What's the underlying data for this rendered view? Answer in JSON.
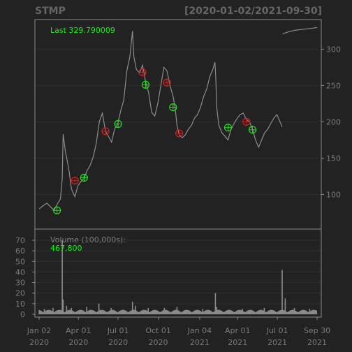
{
  "title": "STMP",
  "date_range": "[2020-01-02/2021-09-30]",
  "last_label": "Last 329.790009",
  "volume_label": "Volume (100,000s):",
  "volume_last": "467,800",
  "colors": {
    "background": "#222222",
    "frame": "#8a8a8a",
    "grid": "#2f2f2f",
    "price_line": "#8c8c8c",
    "green": "#22dd22",
    "red": "#cc2222",
    "text": "#7a7a7a",
    "title_text": "#666666",
    "highlight_text": "#00ff00"
  },
  "chart_data": [
    {
      "type": "line",
      "name": "price",
      "ylim": [
        60,
        335
      ],
      "yticks": [
        100,
        150,
        200,
        250,
        300
      ],
      "x_range": [
        "2020-01-02",
        "2021-09-30"
      ],
      "points": [
        [
          "2020-01-02",
          80
        ],
        [
          "2020-01-10",
          84
        ],
        [
          "2020-01-20",
          88
        ],
        [
          "2020-01-28",
          83
        ],
        [
          "2020-02-05",
          78
        ],
        [
          "2020-02-12",
          86
        ],
        [
          "2020-02-20",
          94
        ],
        [
          "2020-02-24",
          122
        ],
        [
          "2020-02-26",
          183
        ],
        [
          "2020-03-02",
          160
        ],
        [
          "2020-03-10",
          135
        ],
        [
          "2020-03-16",
          108
        ],
        [
          "2020-03-20",
          102
        ],
        [
          "2020-03-24",
          97
        ],
        [
          "2020-03-31",
          112
        ],
        [
          "2020-04-07",
          118
        ],
        [
          "2020-04-14",
          122
        ],
        [
          "2020-04-21",
          133
        ],
        [
          "2020-04-28",
          140
        ],
        [
          "2020-05-05",
          152
        ],
        [
          "2020-05-12",
          170
        ],
        [
          "2020-05-19",
          200
        ],
        [
          "2020-05-26",
          212
        ],
        [
          "2020-06-02",
          187
        ],
        [
          "2020-06-09",
          180
        ],
        [
          "2020-06-16",
          172
        ],
        [
          "2020-06-23",
          190
        ],
        [
          "2020-06-30",
          197
        ],
        [
          "2020-07-07",
          215
        ],
        [
          "2020-07-14",
          230
        ],
        [
          "2020-07-21",
          270
        ],
        [
          "2020-07-28",
          290
        ],
        [
          "2020-08-03",
          325
        ],
        [
          "2020-08-06",
          290
        ],
        [
          "2020-08-12",
          272
        ],
        [
          "2020-08-19",
          267
        ],
        [
          "2020-08-26",
          278
        ],
        [
          "2020-09-02",
          255
        ],
        [
          "2020-09-09",
          240
        ],
        [
          "2020-09-16",
          213
        ],
        [
          "2020-09-23",
          208
        ],
        [
          "2020-09-30",
          225
        ],
        [
          "2020-10-07",
          250
        ],
        [
          "2020-10-14",
          275
        ],
        [
          "2020-10-21",
          270
        ],
        [
          "2020-10-28",
          250
        ],
        [
          "2020-11-04",
          235
        ],
        [
          "2020-11-09",
          218
        ],
        [
          "2020-11-13",
          195
        ],
        [
          "2020-11-18",
          182
        ],
        [
          "2020-11-25",
          178
        ],
        [
          "2020-12-02",
          182
        ],
        [
          "2020-12-09",
          190
        ],
        [
          "2020-12-16",
          195
        ],
        [
          "2020-12-23",
          205
        ],
        [
          "2020-12-30",
          210
        ],
        [
          "2021-01-06",
          220
        ],
        [
          "2021-01-13",
          235
        ],
        [
          "2021-01-20",
          245
        ],
        [
          "2021-01-27",
          262
        ],
        [
          "2021-02-03",
          272
        ],
        [
          "2021-02-08",
          282
        ],
        [
          "2021-02-10",
          260
        ],
        [
          "2021-02-12",
          220
        ],
        [
          "2021-02-17",
          195
        ],
        [
          "2021-02-24",
          185
        ],
        [
          "2021-03-03",
          180
        ],
        [
          "2021-03-10",
          175
        ],
        [
          "2021-03-17",
          190
        ],
        [
          "2021-03-24",
          198
        ],
        [
          "2021-03-31",
          205
        ],
        [
          "2021-04-07",
          210
        ],
        [
          "2021-04-14",
          212
        ],
        [
          "2021-04-21",
          203
        ],
        [
          "2021-04-28",
          200
        ],
        [
          "2021-05-05",
          190
        ],
        [
          "2021-05-12",
          175
        ],
        [
          "2021-05-19",
          165
        ],
        [
          "2021-05-26",
          175
        ],
        [
          "2021-06-02",
          185
        ],
        [
          "2021-06-09",
          190
        ],
        [
          "2021-06-16",
          198
        ],
        [
          "2021-06-23",
          205
        ],
        [
          "2021-06-30",
          210
        ],
        [
          "2021-07-07",
          200
        ],
        [
          "2021-07-12",
          193
        ]
      ],
      "inset_series": [
        [
          "2021-07-13",
          321
        ],
        [
          "2021-07-27",
          324
        ],
        [
          "2021-08-10",
          326
        ],
        [
          "2021-08-24",
          327
        ],
        [
          "2021-09-07",
          328
        ],
        [
          "2021-09-21",
          329
        ],
        [
          "2021-09-30",
          329.79
        ]
      ],
      "markers": [
        {
          "date": "2020-02-12",
          "price": 78,
          "color": "green"
        },
        {
          "date": "2020-03-24",
          "price": 119,
          "color": "red"
        },
        {
          "date": "2020-04-14",
          "price": 123,
          "color": "green"
        },
        {
          "date": "2020-06-02",
          "price": 187,
          "color": "red"
        },
        {
          "date": "2020-07-01",
          "price": 197,
          "color": "green"
        },
        {
          "date": "2020-08-26",
          "price": 268,
          "color": "red"
        },
        {
          "date": "2020-09-02",
          "price": 251,
          "color": "green"
        },
        {
          "date": "2020-10-21",
          "price": 254,
          "color": "red"
        },
        {
          "date": "2020-11-04",
          "price": 220,
          "color": "green"
        },
        {
          "date": "2020-11-18",
          "price": 184,
          "color": "red"
        },
        {
          "date": "2021-03-10",
          "price": 192,
          "color": "green"
        },
        {
          "date": "2021-04-21",
          "price": 200,
          "color": "red"
        },
        {
          "date": "2021-05-05",
          "price": 189,
          "color": "green"
        }
      ]
    },
    {
      "type": "bar",
      "name": "volume",
      "ylim": [
        0,
        70
      ],
      "yticks": [
        0,
        10,
        20,
        30,
        40,
        50,
        60,
        70
      ],
      "baseline": 3,
      "spikes": [
        [
          "2020-01-14",
          5
        ],
        [
          "2020-02-03",
          6
        ],
        [
          "2020-02-24",
          70
        ],
        [
          "2020-02-26",
          14
        ],
        [
          "2020-03-05",
          8
        ],
        [
          "2020-03-16",
          6
        ],
        [
          "2020-04-20",
          7
        ],
        [
          "2020-05-18",
          10
        ],
        [
          "2020-06-15",
          6
        ],
        [
          "2020-08-03",
          12
        ],
        [
          "2020-08-10",
          8
        ],
        [
          "2020-09-08",
          6
        ],
        [
          "2020-10-15",
          6
        ],
        [
          "2020-11-13",
          7
        ],
        [
          "2021-01-11",
          5
        ],
        [
          "2021-02-09",
          20
        ],
        [
          "2021-02-12",
          7
        ],
        [
          "2021-04-12",
          5
        ],
        [
          "2021-06-01",
          6
        ],
        [
          "2021-07-12",
          42
        ],
        [
          "2021-07-19",
          15
        ],
        [
          "2021-08-09",
          6
        ],
        [
          "2021-09-13",
          5
        ]
      ]
    }
  ],
  "x_axis": {
    "ticks": [
      {
        "date": "2020-01-02",
        "line1": "Jan 02",
        "line2": "2020"
      },
      {
        "date": "2020-04-01",
        "line1": "Apr 01",
        "line2": "2020"
      },
      {
        "date": "2020-07-01",
        "line1": "Jul 01",
        "line2": "2020"
      },
      {
        "date": "2020-10-01",
        "line1": "Oct 01",
        "line2": "2020"
      },
      {
        "date": "2021-01-04",
        "line1": "Jan 04",
        "line2": "2021"
      },
      {
        "date": "2021-04-01",
        "line1": "Apr 01",
        "line2": "2021"
      },
      {
        "date": "2021-07-01",
        "line1": "Jul 01",
        "line2": "2021"
      },
      {
        "date": "2021-09-30",
        "line1": "Sep 30",
        "line2": "2021"
      }
    ]
  }
}
